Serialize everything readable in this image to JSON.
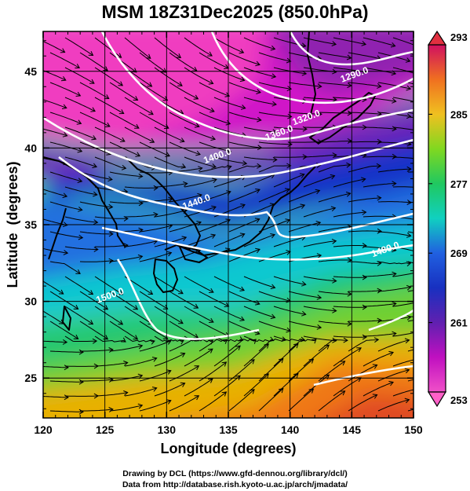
{
  "title": "MSM 18Z31Dec2025 (850.0hPa)",
  "map": {
    "xlabel": "Longitude (degrees)",
    "ylabel": "Latitude  (degrees)",
    "lon_ticks": [
      "120",
      "125",
      "130",
      "135",
      "140",
      "145",
      "150"
    ],
    "lat_ticks": [
      "25",
      "30",
      "35",
      "40",
      "45"
    ],
    "lon_range": [
      120,
      150
    ],
    "lat_range": [
      22.4,
      47.6
    ],
    "grid": true,
    "contour_color": "#ffffff",
    "vector_field": "streamlines (black)"
  },
  "colorbar": {
    "labels": [
      "293",
      "285",
      "277",
      "269",
      "261",
      "253"
    ],
    "range": [
      253,
      293
    ],
    "colors": [
      "#d01060",
      "#f07020",
      "#f0c020",
      "#80d820",
      "#20c860",
      "#10d0c0",
      "#2060e0",
      "#1830c0",
      "#6020b0",
      "#c010c0",
      "#f050c8"
    ]
  },
  "contour_labels": [
    {
      "text": "1290.0",
      "lon": 145.3,
      "lat": 44.6
    },
    {
      "text": "1320.0",
      "lon": 141.4,
      "lat": 41.8
    },
    {
      "text": "1360.0",
      "lon": 139.2,
      "lat": 40.8
    },
    {
      "text": "1400.0",
      "lon": 134.2,
      "lat": 39.3
    },
    {
      "text": "1440.0",
      "lon": 132.5,
      "lat": 36.3
    },
    {
      "text": "1480.0",
      "lon": 147.8,
      "lat": 33.2
    },
    {
      "text": "1500.0",
      "lon": 125.5,
      "lat": 30.2
    }
  ],
  "credits": {
    "line1": "Drawing by DCL (https://www.gfd-dennou.org/library/dcl/)",
    "line2": "Data from http://database.rish.kyoto-u.ac.jp/arch/jmadata/"
  }
}
